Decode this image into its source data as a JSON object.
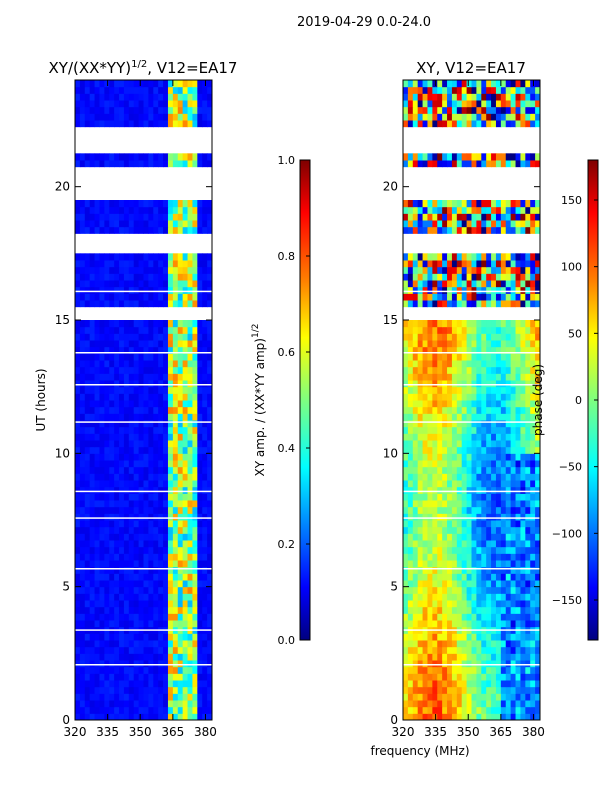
{
  "figure": {
    "suptitle": "2019-04-29 0.0-24.0",
    "xlabel": "frequency (MHz)"
  },
  "colors": {
    "jet": [
      "#00007f",
      "#0000ff",
      "#007fff",
      "#00ffff",
      "#7fff7f",
      "#ffff00",
      "#ff7f00",
      "#ff0000",
      "#7f0000"
    ]
  },
  "chart_data": [
    {
      "type": "heatmap",
      "title_main": "XY/(XX*YY)",
      "title_sup": "1/2",
      "title_rest": ", V12=EA17",
      "ylabel": "UT (hours)",
      "xlim": [
        320,
        383
      ],
      "ylim": [
        0,
        24
      ],
      "xticks": [
        "320",
        "335",
        "350",
        "365",
        "380"
      ],
      "yticks": [
        "0",
        "5",
        "10",
        "15",
        "20"
      ],
      "colorbar": {
        "label": "XY amp. / (XX*YY amp)",
        "label_sup": "1/2",
        "range": [
          0.0,
          1.0
        ],
        "ticks": [
          "0.0",
          "0.2",
          "0.4",
          "0.6",
          "0.8",
          "1.0"
        ]
      },
      "gaps_hours": [
        [
          15.1,
          15.6
        ],
        [
          17.4,
          18.2
        ],
        [
          19.5,
          20.8
        ],
        [
          21.2,
          22.3
        ]
      ],
      "band_mhz": [
        363,
        377
      ],
      "background_value": 0.1,
      "band_value": 0.55
    },
    {
      "type": "heatmap",
      "title_main": "XY, V12=EA17",
      "ylabel": "",
      "xlim": [
        320,
        383
      ],
      "ylim": [
        0,
        24
      ],
      "xticks": [
        "320",
        "335",
        "350",
        "365",
        "380"
      ],
      "yticks": [
        "0",
        "5",
        "10",
        "15",
        "20"
      ],
      "colorbar": {
        "label": "phase (deg)",
        "range": [
          -180,
          180
        ],
        "ticks": [
          "−150",
          "−100",
          "−50",
          "0",
          "50",
          "100",
          "150"
        ],
        "tick_values": [
          -150,
          -100,
          -50,
          0,
          50,
          100,
          150
        ]
      },
      "gaps_hours": [
        [
          15.1,
          15.6
        ],
        [
          17.4,
          18.2
        ],
        [
          19.5,
          20.8
        ],
        [
          21.2,
          22.3
        ]
      ]
    }
  ]
}
